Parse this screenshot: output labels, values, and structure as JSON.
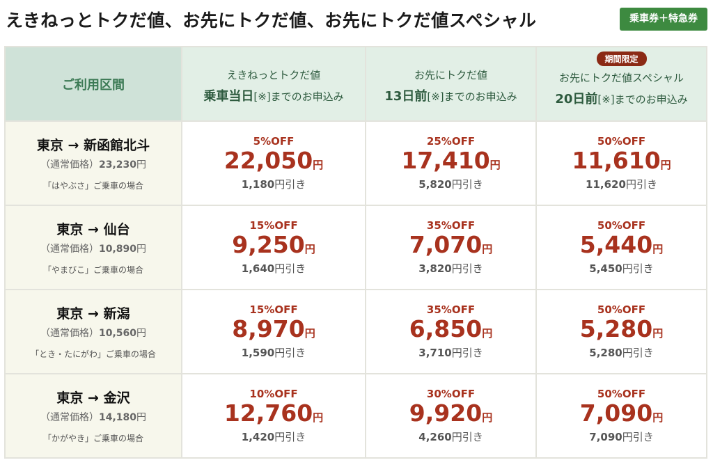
{
  "header": {
    "title": "えきねっとトクだ値、お先にトクだ値、お先にトクだ値スペシャル",
    "ticket_badge": "乗車券＋特急券"
  },
  "table": {
    "route_header": "ご利用区間",
    "plans": [
      {
        "name": "えきねっとトクだ値",
        "deadline_strong": "乗車当日",
        "deadline_rest": "[※]までのお申込み",
        "badge": ""
      },
      {
        "name": "お先にトクだ値",
        "deadline_strong": "13日前",
        "deadline_rest": "[※]までのお申込み",
        "badge": ""
      },
      {
        "name": "お先にトクだ値スペシャル",
        "deadline_strong": "20日前",
        "deadline_rest": "[※]までのお申込み",
        "badge": "期間限定"
      }
    ],
    "rows": [
      {
        "route": "東京 → 新函館北斗",
        "normal_label": "（通常価格）",
        "normal_price": "23,230",
        "normal_unit": "円",
        "train_note": "「はやぶさ」ご乗車の場合",
        "fares": [
          {
            "discount": "5%OFF",
            "price": "22,050",
            "unit": "円",
            "saving": "1,180",
            "saving_suffix": "円引き"
          },
          {
            "discount": "25%OFF",
            "price": "17,410",
            "unit": "円",
            "saving": "5,820",
            "saving_suffix": "円引き"
          },
          {
            "discount": "50%OFF",
            "price": "11,610",
            "unit": "円",
            "saving": "11,620",
            "saving_suffix": "円引き"
          }
        ]
      },
      {
        "route": "東京 → 仙台",
        "normal_label": "（通常価格）",
        "normal_price": "10,890",
        "normal_unit": "円",
        "train_note": "「やまびこ」ご乗車の場合",
        "fares": [
          {
            "discount": "15%OFF",
            "price": "9,250",
            "unit": "円",
            "saving": "1,640",
            "saving_suffix": "円引き"
          },
          {
            "discount": "35%OFF",
            "price": "7,070",
            "unit": "円",
            "saving": "3,820",
            "saving_suffix": "円引き"
          },
          {
            "discount": "50%OFF",
            "price": "5,440",
            "unit": "円",
            "saving": "5,450",
            "saving_suffix": "円引き"
          }
        ]
      },
      {
        "route": "東京 → 新潟",
        "normal_label": "（通常価格）",
        "normal_price": "10,560",
        "normal_unit": "円",
        "train_note": "「とき・たにがわ」ご乗車の場合",
        "fares": [
          {
            "discount": "15%OFF",
            "price": "8,970",
            "unit": "円",
            "saving": "1,590",
            "saving_suffix": "円引き"
          },
          {
            "discount": "35%OFF",
            "price": "6,850",
            "unit": "円",
            "saving": "3,710",
            "saving_suffix": "円引き"
          },
          {
            "discount": "50%OFF",
            "price": "5,280",
            "unit": "円",
            "saving": "5,280",
            "saving_suffix": "円引き"
          }
        ]
      },
      {
        "route": "東京 → 金沢",
        "normal_label": "（通常価格）",
        "normal_price": "14,180",
        "normal_unit": "円",
        "train_note": "「かがやき」ご乗車の場合",
        "fares": [
          {
            "discount": "10%OFF",
            "price": "12,760",
            "unit": "円",
            "saving": "1,420",
            "saving_suffix": "円引き"
          },
          {
            "discount": "30%OFF",
            "price": "9,920",
            "unit": "円",
            "saving": "4,260",
            "saving_suffix": "円引き"
          },
          {
            "discount": "50%OFF",
            "price": "7,090",
            "unit": "円",
            "saving": "7,090",
            "saving_suffix": "円引き"
          }
        ]
      }
    ]
  }
}
